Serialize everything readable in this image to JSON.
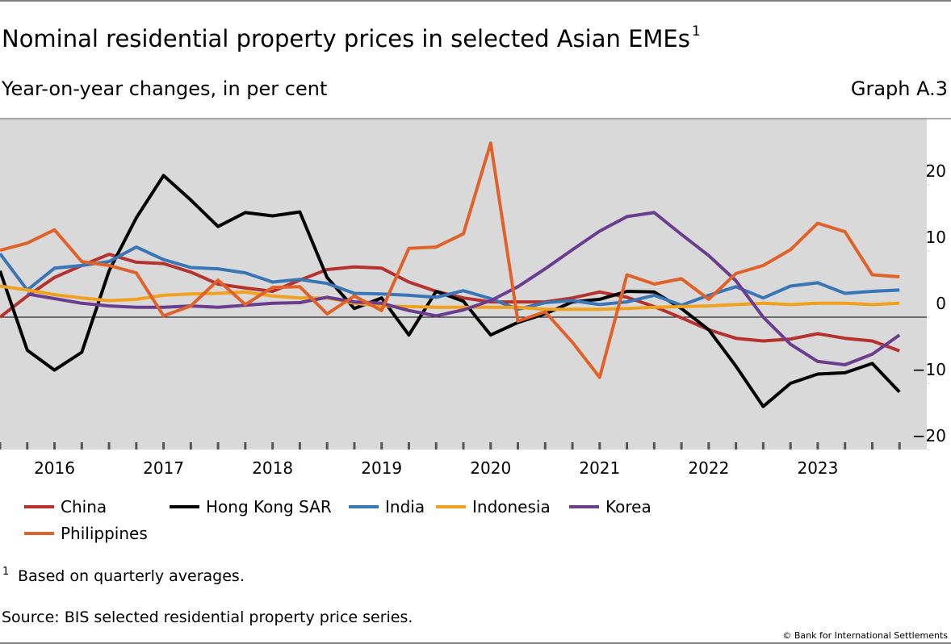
{
  "chart_data": {
    "type": "line",
    "title": "Nominal residential property prices in selected Asian EMEs",
    "title_note": "1",
    "subtitle": "Year-on-year changes, in per cent",
    "graph_label": "Graph A.3",
    "footnote_mark": "1",
    "footnote": "Based on quarterly averages.",
    "source": "Source: BIS selected residential property price series.",
    "copyright": "© Bank for International Settlements",
    "x": [
      2016,
      2016.25,
      2016.5,
      2016.75,
      2017,
      2017.25,
      2017.5,
      2017.75,
      2018,
      2018.25,
      2018.5,
      2018.75,
      2019,
      2019.25,
      2019.5,
      2019.75,
      2020,
      2020.25,
      2020.5,
      2020.75,
      2021,
      2021.25,
      2021.5,
      2021.75,
      2022,
      2022.25,
      2022.5,
      2022.75,
      2023,
      2023.25,
      2023.5,
      2023.75,
      2024,
      2024.25
    ],
    "xlim": [
      2016,
      2024.5
    ],
    "xticks": [
      {
        "value": 2016.5,
        "label": "2016"
      },
      {
        "value": 2017.5,
        "label": "2017"
      },
      {
        "value": 2018.5,
        "label": "2018"
      },
      {
        "value": 2019.5,
        "label": "2019"
      },
      {
        "value": 2020.5,
        "label": "2020"
      },
      {
        "value": 2021.5,
        "label": "2021"
      },
      {
        "value": 2022.5,
        "label": "2022"
      },
      {
        "value": 2023.5,
        "label": "2023"
      }
    ],
    "ylim": [
      -20,
      30
    ],
    "yticks": [
      {
        "value": -20,
        "label": "−20"
      },
      {
        "value": -10,
        "label": "−10"
      },
      0,
      10,
      20
    ],
    "series": [
      {
        "name": "China",
        "color": "#b5322f",
        "values": [
          0,
          3.2,
          6,
          7.8,
          9.5,
          8.3,
          8.1,
          6.8,
          5,
          4.4,
          3.9,
          5.6,
          7.2,
          7.6,
          7.4,
          5.3,
          3.9,
          2.9,
          2.3,
          2.3,
          2.3,
          2.9,
          3.8,
          3,
          1.6,
          -0.1,
          -1.9,
          -3.2,
          -3.6,
          -3.3,
          -2.5,
          -3.2,
          -3.6,
          -5.1
        ]
      },
      {
        "name": "Hong Kong SAR",
        "color": "#000000",
        "values": [
          7,
          -5,
          -8,
          -5.3,
          7,
          15,
          21.4,
          17.7,
          13.7,
          15.8,
          15.3,
          15.9,
          6,
          1.3,
          2.9,
          -2.7,
          3.9,
          2.4,
          -2.7,
          -0.8,
          0.5,
          2.3,
          2.7,
          3.9,
          3.8,
          1.3,
          -1.9,
          -7.4,
          -13.5,
          -10,
          -8.6,
          -8.4,
          -7,
          -11.3
        ]
      },
      {
        "name": "India",
        "color": "#3a75b5",
        "values": [
          9.6,
          4.1,
          7.4,
          7.8,
          8.4,
          10.6,
          8.7,
          7.5,
          7.3,
          6.7,
          5.3,
          5.7,
          5.1,
          3.6,
          3.5,
          3.3,
          3,
          4,
          2.8,
          1.2,
          2.2,
          2.5,
          1.9,
          2.3,
          3.3,
          1.8,
          3.3,
          4.6,
          2.9,
          4.7,
          5.2,
          3.6,
          3.9,
          4.1
        ]
      },
      {
        "name": "Indonesia",
        "color": "#f0a11e",
        "values": [
          4.7,
          4.1,
          3.4,
          2.9,
          2.5,
          2.7,
          3.3,
          3.5,
          3.6,
          3.8,
          3.2,
          2.9,
          2.9,
          2.1,
          1.7,
          1.6,
          1.5,
          1.5,
          1.5,
          1.5,
          1.2,
          1.2,
          1.2,
          1.3,
          1.5,
          1.6,
          1.7,
          1.9,
          2.1,
          1.9,
          2.1,
          2.1,
          1.9,
          2.1
        ]
      },
      {
        "name": "Korea",
        "color": "#6a3d8f",
        "values": [
          null,
          3.5,
          2.8,
          2.1,
          1.7,
          1.5,
          1.5,
          1.7,
          1.5,
          1.8,
          2.1,
          2.2,
          3,
          2.3,
          2.1,
          1,
          0.2,
          1.1,
          2.5,
          4.6,
          7.3,
          10.2,
          13,
          15.2,
          15.8,
          12.5,
          9.3,
          5.5,
          0,
          -4.1,
          -6.7,
          -7.2,
          -5.6,
          -2.7
        ]
      },
      {
        "name": "Philippines",
        "color": "#e0622a",
        "values": [
          10.1,
          11.2,
          13.2,
          8.4,
          7.8,
          6.7,
          0.2,
          1.7,
          5.6,
          1.9,
          4.5,
          4.6,
          0.5,
          3.2,
          1,
          10.4,
          10.6,
          12.6,
          26.3,
          -0.6,
          0.8,
          -3.8,
          -9.1,
          6.4,
          5,
          5.8,
          2.7,
          6.6,
          7.8,
          10.2,
          14.2,
          12.9,
          6.4,
          6.1
        ]
      }
    ]
  }
}
